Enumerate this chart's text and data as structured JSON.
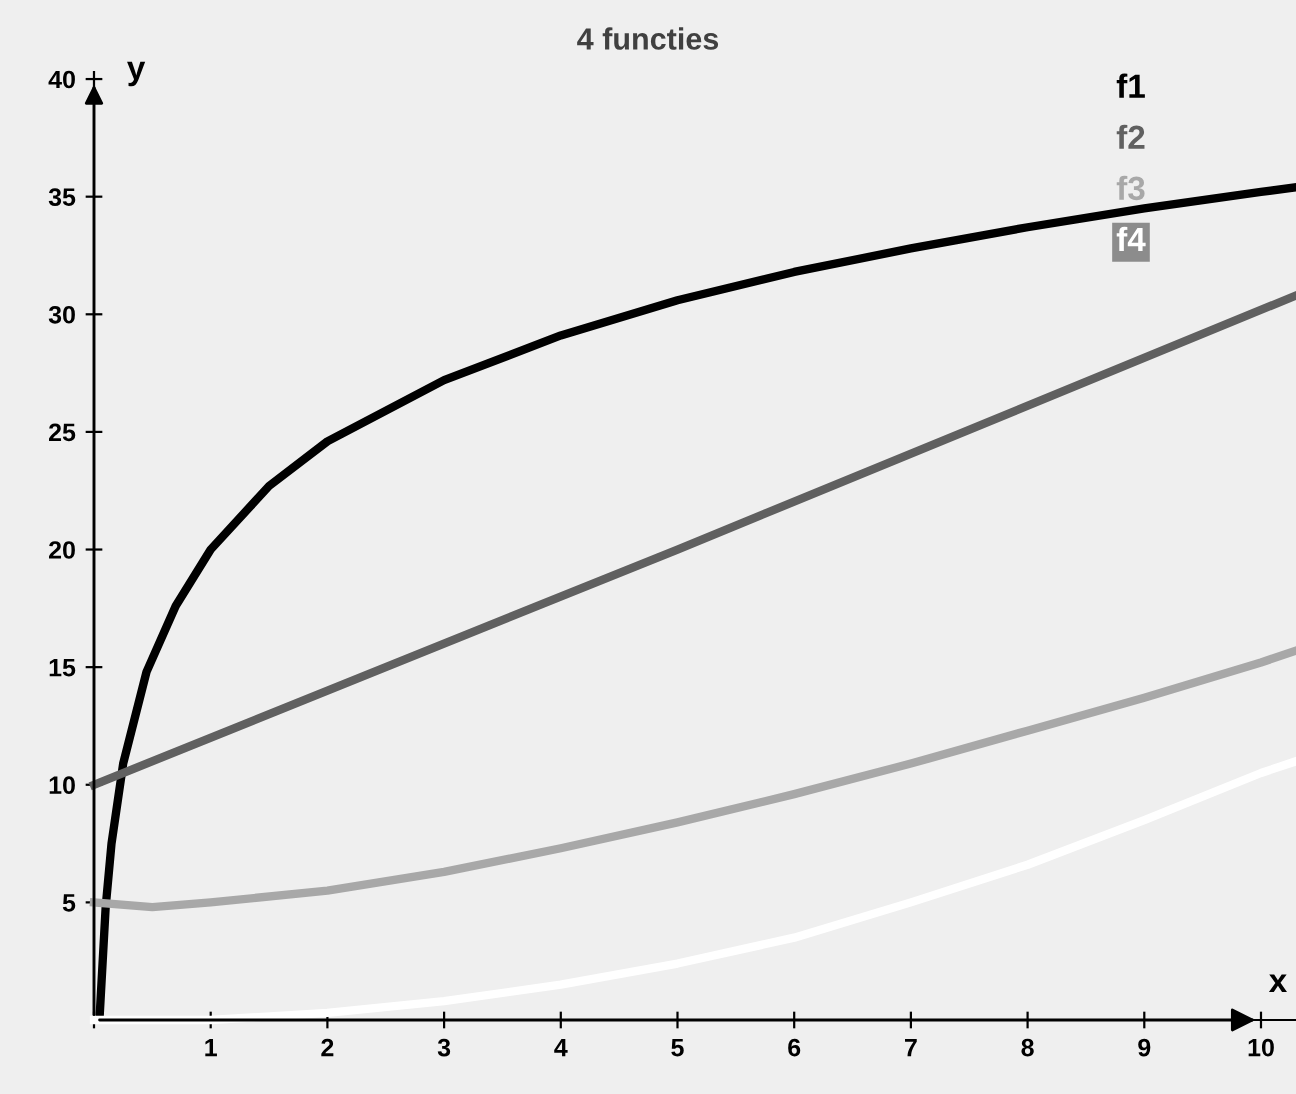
{
  "chart_data": {
    "type": "line",
    "title": "4 functies",
    "xlabel": "x",
    "ylabel": "y",
    "xlim": [
      0,
      10.3
    ],
    "ylim": [
      0,
      40.3
    ],
    "xticks": [
      {
        "value": 0,
        "label": null
      },
      1,
      2,
      3,
      4,
      5,
      6,
      7,
      8,
      9,
      10
    ],
    "yticks": [
      5,
      10,
      15,
      20,
      25,
      30,
      35,
      40
    ],
    "grid": false,
    "legend": "top right",
    "marker": "none",
    "line_style": "solid",
    "series": [
      {
        "name": "f1",
        "color": "#000000",
        "x": [
          0.05,
          0.1,
          0.15,
          0.25,
          0.45,
          0.7,
          1,
          1.5,
          2,
          3,
          4,
          5,
          6,
          7,
          8,
          9,
          10,
          10.3
        ],
        "values": [
          0.3,
          4.8,
          7.5,
          10.9,
          14.8,
          17.6,
          20,
          22.7,
          24.6,
          27.2,
          29.1,
          30.6,
          31.8,
          32.8,
          33.7,
          34.5,
          35.2,
          35.4
        ]
      },
      {
        "name": "f2",
        "color": "#606060",
        "x": [
          0,
          5,
          10.3
        ],
        "values": [
          10,
          20,
          30.8
        ]
      },
      {
        "name": "f3",
        "color": "#a8a8a8",
        "x": [
          0,
          0.5,
          1,
          2,
          3,
          4,
          5,
          6,
          7,
          8,
          9,
          10,
          10.3
        ],
        "values": [
          5,
          4.8,
          5,
          5.5,
          6.3,
          7.3,
          8.4,
          9.6,
          10.9,
          12.3,
          13.7,
          15.2,
          15.7
        ]
      },
      {
        "name": "f4",
        "color": "#ffffff",
        "x": [
          0,
          1,
          2,
          3,
          4,
          5,
          6,
          7,
          8,
          9,
          10,
          10.3
        ],
        "values": [
          0,
          0,
          0.3,
          0.8,
          1.5,
          2.4,
          3.5,
          5,
          6.6,
          8.5,
          10.5,
          11
        ]
      }
    ]
  }
}
